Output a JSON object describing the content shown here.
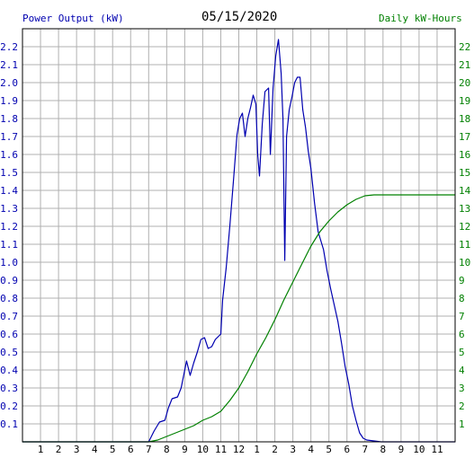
{
  "header": {
    "left_label": "Power Output (kW)",
    "date": "05/15/2020",
    "right_label": "Daily kW-Hours"
  },
  "colors": {
    "power": "#0000b0",
    "energy": "#008000",
    "grid": "#b0b0b0",
    "axis": "#000000"
  },
  "chart_data": {
    "type": "line",
    "title": "05/15/2020",
    "x_tick_labels": [
      "1",
      "2",
      "3",
      "4",
      "5",
      "6",
      "7",
      "8",
      "9",
      "10",
      "11",
      "12",
      "1",
      "2",
      "3",
      "4",
      "5",
      "6",
      "7",
      "8",
      "9",
      "10",
      "11"
    ],
    "x_range_hours": [
      0,
      24
    ],
    "y_left": {
      "label": "Power Output (kW)",
      "range": [
        0,
        2.3
      ],
      "tick_labels": [
        "0.1",
        "0.2",
        "0.3",
        "0.4",
        "0.5",
        "0.6",
        "0.7",
        "0.8",
        "0.9",
        "1.0",
        "1.1",
        "1.2",
        "1.3",
        "1.4",
        "1.5",
        "1.6",
        "1.7",
        "1.8",
        "1.9",
        "2.0",
        "2.1",
        "2.2"
      ]
    },
    "y_right": {
      "label": "Daily kW-Hours",
      "range": [
        0,
        23
      ],
      "tick_labels": [
        "1",
        "2",
        "3",
        "4",
        "5",
        "6",
        "7",
        "8",
        "9",
        "10",
        "11",
        "12",
        "13",
        "14",
        "15",
        "16",
        "17",
        "18",
        "19",
        "20",
        "21",
        "22"
      ]
    },
    "grid": true,
    "series": [
      {
        "name": "Power Output (kW)",
        "axis": "left",
        "points": [
          [
            0,
            0
          ],
          [
            7.0,
            0
          ],
          [
            7.1,
            0.02
          ],
          [
            7.3,
            0.06
          ],
          [
            7.6,
            0.11
          ],
          [
            7.9,
            0.12
          ],
          [
            8.1,
            0.19
          ],
          [
            8.3,
            0.24
          ],
          [
            8.6,
            0.25
          ],
          [
            8.8,
            0.3
          ],
          [
            9.0,
            0.4
          ],
          [
            9.1,
            0.45
          ],
          [
            9.3,
            0.37
          ],
          [
            9.5,
            0.44
          ],
          [
            9.7,
            0.5
          ],
          [
            9.9,
            0.57
          ],
          [
            10.1,
            0.58
          ],
          [
            10.3,
            0.52
          ],
          [
            10.5,
            0.53
          ],
          [
            10.7,
            0.57
          ],
          [
            11.0,
            0.6
          ],
          [
            11.1,
            0.79
          ],
          [
            11.3,
            0.97
          ],
          [
            11.5,
            1.2
          ],
          [
            11.7,
            1.45
          ],
          [
            11.9,
            1.71
          ],
          [
            12.05,
            1.8
          ],
          [
            12.2,
            1.83
          ],
          [
            12.35,
            1.7
          ],
          [
            12.5,
            1.8
          ],
          [
            12.65,
            1.86
          ],
          [
            12.8,
            1.93
          ],
          [
            12.95,
            1.88
          ],
          [
            13.05,
            1.6
          ],
          [
            13.15,
            1.48
          ],
          [
            13.3,
            1.77
          ],
          [
            13.45,
            1.95
          ],
          [
            13.65,
            1.97
          ],
          [
            13.75,
            1.6
          ],
          [
            13.9,
            1.97
          ],
          [
            14.05,
            2.15
          ],
          [
            14.2,
            2.24
          ],
          [
            14.35,
            2.05
          ],
          [
            14.45,
            1.8
          ],
          [
            14.55,
            1.01
          ],
          [
            14.65,
            1.7
          ],
          [
            14.8,
            1.85
          ],
          [
            14.95,
            1.92
          ],
          [
            15.1,
            2.0
          ],
          [
            15.25,
            2.03
          ],
          [
            15.4,
            2.03
          ],
          [
            15.55,
            1.85
          ],
          [
            15.7,
            1.75
          ],
          [
            15.85,
            1.62
          ],
          [
            16.0,
            1.52
          ],
          [
            16.2,
            1.33
          ],
          [
            16.4,
            1.17
          ],
          [
            16.7,
            1.07
          ],
          [
            16.9,
            0.95
          ],
          [
            17.1,
            0.85
          ],
          [
            17.3,
            0.76
          ],
          [
            17.5,
            0.67
          ],
          [
            17.7,
            0.55
          ],
          [
            17.9,
            0.42
          ],
          [
            18.1,
            0.32
          ],
          [
            18.3,
            0.2
          ],
          [
            18.5,
            0.12
          ],
          [
            18.7,
            0.05
          ],
          [
            18.9,
            0.02
          ],
          [
            19.1,
            0.01
          ],
          [
            19.9,
            0.0
          ],
          [
            24,
            0
          ]
        ]
      },
      {
        "name": "Daily kW-Hours",
        "axis": "right",
        "points": [
          [
            0,
            0
          ],
          [
            7.0,
            0
          ],
          [
            7.5,
            0.1
          ],
          [
            8.0,
            0.3
          ],
          [
            8.5,
            0.5
          ],
          [
            9.0,
            0.7
          ],
          [
            9.5,
            0.9
          ],
          [
            10.0,
            1.2
          ],
          [
            10.5,
            1.4
          ],
          [
            11.0,
            1.7
          ],
          [
            11.5,
            2.3
          ],
          [
            12.0,
            3.0
          ],
          [
            12.5,
            3.9
          ],
          [
            13.0,
            4.9
          ],
          [
            13.5,
            5.8
          ],
          [
            14.0,
            6.8
          ],
          [
            14.5,
            7.9
          ],
          [
            15.0,
            8.9
          ],
          [
            15.5,
            9.9
          ],
          [
            16.0,
            10.9
          ],
          [
            16.5,
            11.7
          ],
          [
            17.0,
            12.3
          ],
          [
            17.5,
            12.8
          ],
          [
            18.0,
            13.2
          ],
          [
            18.5,
            13.5
          ],
          [
            19.0,
            13.7
          ],
          [
            19.5,
            13.75
          ],
          [
            24,
            13.75
          ]
        ]
      }
    ]
  }
}
